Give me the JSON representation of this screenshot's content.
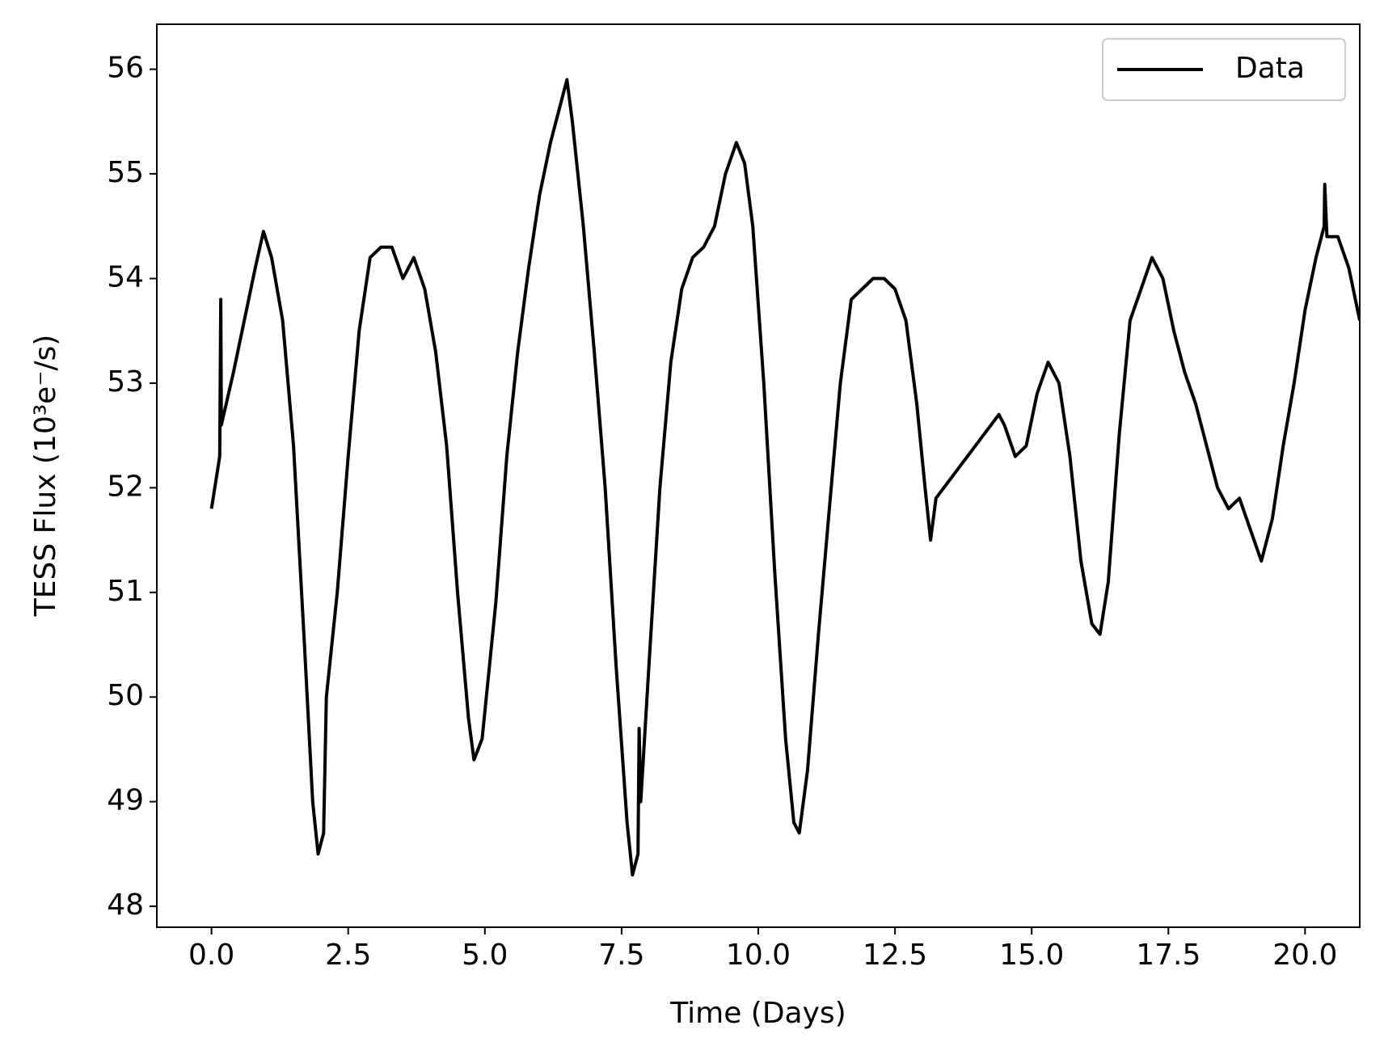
{
  "chart_data": {
    "type": "line",
    "x_label": "Time (Days)",
    "y_label": "TESS Flux (10³e⁻/s)",
    "x": [
      0.0,
      0.15,
      0.17,
      0.18,
      0.4,
      0.6,
      0.8,
      0.95,
      1.1,
      1.3,
      1.5,
      1.7,
      1.85,
      1.95,
      2.05,
      2.1,
      2.3,
      2.5,
      2.7,
      2.9,
      3.1,
      3.3,
      3.5,
      3.7,
      3.9,
      4.1,
      4.3,
      4.5,
      4.7,
      4.8,
      4.95,
      5.2,
      5.4,
      5.6,
      5.8,
      6.0,
      6.2,
      6.4,
      6.5,
      6.6,
      6.8,
      7.0,
      7.2,
      7.4,
      7.6,
      7.7,
      7.8,
      7.82,
      7.85,
      8.0,
      8.2,
      8.4,
      8.6,
      8.8,
      9.0,
      9.2,
      9.4,
      9.6,
      9.75,
      9.9,
      10.1,
      10.3,
      10.5,
      10.65,
      10.75,
      10.9,
      11.1,
      11.3,
      11.5,
      11.7,
      11.9,
      12.1,
      12.3,
      12.5,
      12.7,
      12.9,
      13.05,
      13.15,
      13.25,
      14.4,
      14.5,
      14.7,
      14.9,
      15.1,
      15.3,
      15.5,
      15.7,
      15.9,
      16.1,
      16.25,
      16.4,
      16.6,
      16.8,
      17.0,
      17.2,
      17.4,
      17.6,
      17.8,
      18.0,
      18.2,
      18.4,
      18.6,
      18.8,
      19.0,
      19.2,
      19.4,
      19.6,
      19.8,
      20.0,
      20.2,
      20.35,
      20.36,
      20.4,
      20.6,
      20.8,
      21.0
    ],
    "series": [
      {
        "name": "Data",
        "color": "#000000",
        "values": [
          51.8,
          52.3,
          53.8,
          52.6,
          53.1,
          53.6,
          54.1,
          54.45,
          54.2,
          53.6,
          52.4,
          50.5,
          49.0,
          48.5,
          48.7,
          50.0,
          51.0,
          52.3,
          53.5,
          54.2,
          54.3,
          54.3,
          54.0,
          54.2,
          53.9,
          53.3,
          52.4,
          51.0,
          49.8,
          49.4,
          49.6,
          50.9,
          52.3,
          53.3,
          54.1,
          54.8,
          55.3,
          55.7,
          55.9,
          55.5,
          54.5,
          53.3,
          52.0,
          50.3,
          48.8,
          48.3,
          48.5,
          49.7,
          49.0,
          50.3,
          52.0,
          53.2,
          53.9,
          54.2,
          54.3,
          54.5,
          55.0,
          55.3,
          55.1,
          54.5,
          53.0,
          51.2,
          49.6,
          48.8,
          48.7,
          49.3,
          50.6,
          51.8,
          53.0,
          53.8,
          53.9,
          54.0,
          54.0,
          53.9,
          53.6,
          52.8,
          52.0,
          51.5,
          51.9,
          52.7,
          52.6,
          52.3,
          52.4,
          52.9,
          53.2,
          53.0,
          52.3,
          51.3,
          50.7,
          50.6,
          51.1,
          52.5,
          53.6,
          53.9,
          54.2,
          54.0,
          53.5,
          53.1,
          52.8,
          52.4,
          52.0,
          51.8,
          51.9,
          51.6,
          51.3,
          51.7,
          52.4,
          53.0,
          53.7,
          54.2,
          54.5,
          54.9,
          54.4,
          54.4,
          54.1,
          53.6
        ]
      }
    ],
    "xlim": [
      -1.0,
      21.0
    ],
    "ylim": [
      47.8,
      56.43
    ],
    "xticks": [
      {
        "value": 0,
        "label": "0.0"
      },
      2.5,
      {
        "value": 5,
        "label": "5.0"
      },
      7.5,
      {
        "value": 10,
        "label": "10.0"
      },
      12.5,
      {
        "value": 15,
        "label": "15.0"
      },
      17.5,
      {
        "value": 20,
        "label": "20.0"
      }
    ],
    "yticks": [
      48,
      49,
      50,
      51,
      52,
      53,
      54,
      55,
      56
    ],
    "grid": false,
    "legend": "upper right"
  }
}
